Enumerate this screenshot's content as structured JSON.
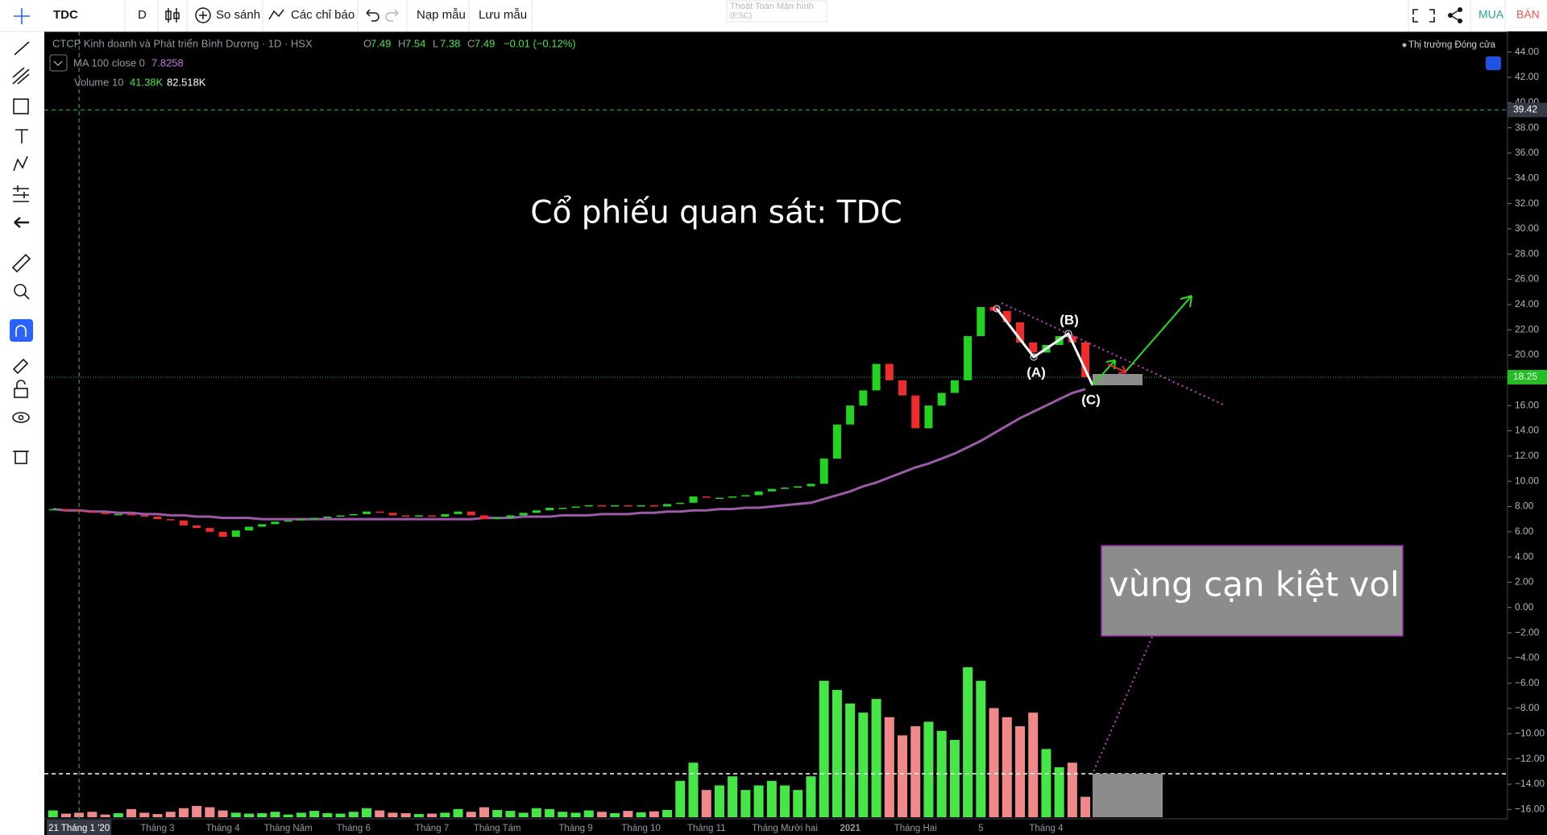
{
  "toolbar": {
    "symbol": "TDC",
    "interval": "D",
    "compare": "So sánh",
    "indicators": "Các chỉ báo",
    "load": "Nạp mẫu",
    "save": "Lưu mẫu",
    "exit_fullscreen": "Thoát Toàn Màn hình",
    "exit_key": "(ESC)",
    "buy": "MUA",
    "sell": "BÁN"
  },
  "chart_data": {
    "type": "candlestick",
    "title": "Cổ phiếu quan sát: TDC",
    "legend": {
      "name": "CTCP Kinh doanh và Phát triển Bình Dương · 1D · HSX",
      "ohlc": [
        {
          "key": "O",
          "value": 7.49
        },
        {
          "key": "H",
          "value": 7.54
        },
        {
          "key": "L",
          "value": 7.38
        },
        {
          "key": "C",
          "value": 7.49
        }
      ],
      "change": "−0.01 (−0.12%)",
      "ma_label": "MA 100 close 0",
      "ma_value": 7.8258,
      "volume_label": "Volume 10",
      "volume_value": {
        "value": 41.38,
        "label": "41.38K"
      },
      "volume_ma_value": {
        "value": 82.518,
        "label": "82.518K"
      },
      "market_status": "Thị trường Đóng cửa"
    },
    "categories": [
      null,
      null,
      "21 Tháng 1 '20",
      null,
      null,
      null,
      null,
      null,
      "Tháng 3",
      null,
      null,
      null,
      null,
      "Tháng 4",
      null,
      null,
      null,
      null,
      "Tháng Năm",
      null,
      null,
      null,
      null,
      "Tháng 6",
      null,
      null,
      null,
      null,
      null,
      "Tháng 7",
      null,
      null,
      null,
      null,
      "Tháng Tám",
      null,
      null,
      null,
      null,
      null,
      "Tháng 9",
      null,
      null,
      null,
      null,
      "Tháng 10",
      null,
      null,
      null,
      null,
      "Tháng 11",
      null,
      null,
      null,
      null,
      null,
      "Tháng Mười hai",
      null,
      null,
      null,
      null,
      "2021",
      null,
      null,
      null,
      null,
      "Tháng Hai",
      null,
      null,
      null,
      null,
      "5",
      null,
      null,
      null,
      null,
      "Tháng 4",
      null,
      null,
      null
    ],
    "close": [
      7.8,
      7.7,
      7.6,
      7.5,
      7.4,
      7.4,
      7.3,
      7.2,
      7.0,
      6.9,
      6.5,
      6.3,
      6.0,
      5.6,
      6.1,
      6.4,
      6.6,
      6.8,
      6.9,
      7.0,
      7.1,
      7.2,
      7.3,
      7.4,
      7.6,
      7.5,
      7.3,
      7.2,
      7.3,
      7.2,
      7.4,
      7.6,
      7.3,
      7.0,
      7.1,
      7.3,
      7.5,
      7.7,
      7.9,
      7.9,
      8.0,
      8.1,
      8.0,
      8.1,
      8.0,
      8.1,
      8.0,
      8.2,
      8.3,
      8.8,
      8.7,
      8.7,
      8.8,
      8.9,
      9.2,
      9.4,
      9.5,
      9.6,
      9.8,
      11.8,
      14.5,
      16.0,
      17.2,
      19.3,
      18.0,
      16.8,
      14.2,
      16.0,
      17.0,
      18.0,
      21.5,
      23.8,
      23.5,
      22.6,
      21.0,
      20.2,
      20.8,
      21.5,
      21.0,
      18.25
    ],
    "up_color": "#22d322",
    "down_color": "#ef2b2b",
    "ma": {
      "color": "#9c5aa8",
      "values": [
        7.8,
        7.7,
        7.7,
        7.6,
        7.6,
        7.5,
        7.5,
        7.4,
        7.4,
        7.3,
        7.3,
        7.2,
        7.2,
        7.1,
        7.1,
        7.1,
        7.0,
        7.0,
        7.0,
        7.0,
        7.0,
        7.0,
        7.0,
        7.0,
        7.0,
        7.0,
        7.0,
        7.0,
        7.0,
        7.0,
        7.0,
        7.0,
        7.0,
        7.1,
        7.1,
        7.1,
        7.2,
        7.2,
        7.2,
        7.3,
        7.3,
        7.3,
        7.4,
        7.4,
        7.4,
        7.5,
        7.5,
        7.6,
        7.6,
        7.7,
        7.7,
        7.8,
        7.8,
        7.9,
        7.9,
        8.0,
        8.1,
        8.2,
        8.3,
        8.6,
        8.9,
        9.2,
        9.6,
        9.9,
        10.3,
        10.7,
        11.1,
        11.4,
        11.8,
        12.2,
        12.7,
        13.2,
        13.8,
        14.4,
        15.0,
        15.5,
        16.0,
        16.5,
        17.0,
        17.3
      ]
    },
    "volume": {
      "up_color": "#45e645",
      "down_color": "#f08a8a",
      "vlim": [
        0,
        450
      ],
      "values": [
        15,
        8,
        10,
        12,
        6,
        9,
        18,
        10,
        7,
        12,
        20,
        25,
        22,
        15,
        10,
        8,
        9,
        12,
        6,
        10,
        14,
        9,
        8,
        12,
        20,
        15,
        10,
        9,
        7,
        8,
        10,
        18,
        12,
        22,
        16,
        14,
        10,
        20,
        18,
        12,
        10,
        15,
        12,
        9,
        14,
        11,
        13,
        16,
        80,
        120,
        60,
        70,
        90,
        60,
        70,
        80,
        70,
        60,
        90,
        300,
        280,
        250,
        230,
        260,
        220,
        180,
        200,
        210,
        190,
        170,
        330,
        300,
        240,
        220,
        200,
        230,
        150,
        110,
        120,
        45
      ]
    },
    "ylim": [
      -17,
      45
    ],
    "yticks": [
      {
        "value": 44,
        "label": "44.00"
      },
      {
        "value": 42,
        "label": "42.00"
      },
      {
        "value": 40,
        "label": "40.00"
      },
      {
        "value": 38,
        "label": "38.00"
      },
      {
        "value": 36,
        "label": "36.00"
      },
      {
        "value": 34,
        "label": "34.00"
      },
      {
        "value": 32,
        "label": "32.00"
      },
      {
        "value": 30,
        "label": "30.00"
      },
      {
        "value": 28,
        "label": "28.00"
      },
      {
        "value": 26,
        "label": "26.00"
      },
      {
        "value": 24,
        "label": "24.00"
      },
      {
        "value": 22,
        "label": "22.00"
      },
      {
        "value": 20,
        "label": "20.00"
      },
      {
        "value": 18,
        "label": "18.00"
      },
      {
        "value": 16,
        "label": "16.00"
      },
      {
        "value": 14,
        "label": "14.00"
      },
      {
        "value": 12,
        "label": "12.00"
      },
      {
        "value": 10,
        "label": "10.00"
      },
      {
        "value": 8,
        "label": "8.00"
      },
      {
        "value": 6,
        "label": "6.00"
      },
      {
        "value": 4,
        "label": "4.00"
      },
      {
        "value": 2,
        "label": "2.00"
      },
      {
        "value": 0,
        "label": "0.00"
      },
      {
        "value": -2,
        "label": "−2.00"
      },
      {
        "value": -4,
        "label": "−4.00"
      },
      {
        "value": -6,
        "label": "−6.00"
      },
      {
        "value": -8,
        "label": "−8.00"
      },
      {
        "value": -10,
        "label": "−10.00"
      },
      {
        "value": -12,
        "label": "−12.00"
      },
      {
        "value": -14,
        "label": "−14.00"
      },
      {
        "value": -16,
        "label": "−16.00"
      }
    ],
    "crosshair_price": 39.42,
    "last_price": 18.25,
    "annotations": {
      "wave_labels": [
        "(A)",
        "(B)",
        "(C)"
      ],
      "box": "vùng cạn kiệt vol"
    }
  }
}
